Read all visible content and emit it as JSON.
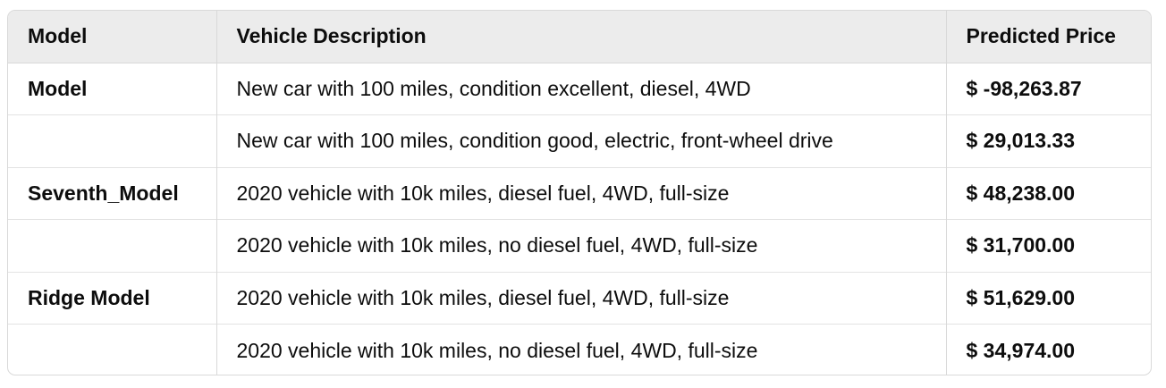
{
  "table": {
    "headers": [
      "Model",
      "Vehicle Description",
      "Predicted Price"
    ],
    "rows": [
      {
        "model": "Model",
        "description": "New car with 100 miles, condition excellent, diesel, 4WD",
        "price": "$ -98,263.87"
      },
      {
        "model": "",
        "description": "New car with 100 miles, condition good, electric, front-wheel drive",
        "price": "$ 29,013.33"
      },
      {
        "model": "Seventh_Model",
        "description": "2020 vehicle with 10k miles, diesel fuel, 4WD, full-size",
        "price": "$ 48,238.00"
      },
      {
        "model": "",
        "description": "2020 vehicle with 10k miles, no diesel fuel, 4WD, full-size",
        "price": "$ 31,700.00"
      },
      {
        "model": "Ridge Model",
        "description": "2020 vehicle with 10k miles, diesel fuel, 4WD, full-size",
        "price": "$ 51,629.00"
      },
      {
        "model": "",
        "description": "2020 vehicle with 10k miles, no diesel fuel, 4WD, full-size",
        "price": "$ 34,974.00"
      }
    ]
  }
}
